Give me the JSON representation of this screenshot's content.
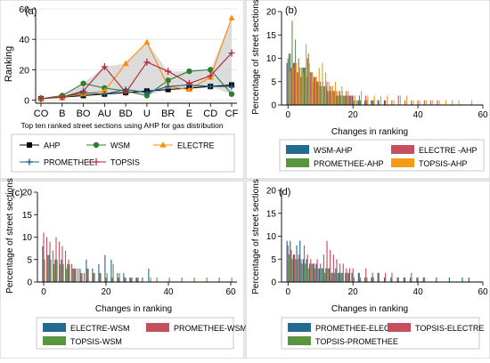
{
  "panel_a": {
    "label": "(a)",
    "ylabel": "Ranking",
    "xlabel": "Top ten ranked street sections using AHP for gas distribution",
    "legend": [
      "AHP",
      "WSM",
      "ELECTRE",
      "PROMETHEE",
      "TOPSIS"
    ]
  },
  "panel_b": {
    "label": "(b)",
    "ylabel": "Percentage of street sections",
    "xlabel": "Changes in ranking",
    "legend": [
      "WSM-AHP",
      "ELECTRE -AHP",
      "PROMETHEE-AHP",
      "TOPSIS-AHP"
    ]
  },
  "panel_c": {
    "label": "(c)",
    "ylabel": "Percentage of street sections",
    "xlabel": "Changes in ranking",
    "legend": [
      "ELECTRE-WSM",
      "PROMETHEE-WSM",
      "TOPSIS-WSM"
    ]
  },
  "panel_d": {
    "label": "(d)",
    "ylabel": "Percentage of street sections",
    "xlabel": "Changes in ranking",
    "legend": [
      "PROMETHEE-ELECTRE",
      "TOPSIS-ELECTRE",
      "TOPSIS-PROMETHEE"
    ]
  },
  "chart_data": [
    {
      "type": "line",
      "categories": [
        "CO",
        "B",
        "BO",
        "AU",
        "BD",
        "U",
        "BR",
        "E",
        "CD",
        "CF"
      ],
      "ylim": [
        -2,
        60
      ],
      "yticks": [
        0,
        20,
        40,
        60
      ],
      "grid": true,
      "legend_position": "bottom",
      "band_shaded": true,
      "series": [
        {
          "name": "AHP",
          "color": "#000000",
          "marker": "square",
          "values": [
            1,
            2,
            3,
            4,
            5,
            6,
            7,
            8,
            9,
            10
          ]
        },
        {
          "name": "WSM",
          "color": "#2e7d32",
          "marker": "circle",
          "values": [
            1,
            3,
            11,
            8,
            6,
            3,
            13,
            19,
            20,
            4
          ]
        },
        {
          "name": "ELECTRE",
          "color": "#ff8c00",
          "marker": "triangle",
          "values": [
            1,
            2,
            4,
            6,
            24,
            38,
            9,
            7,
            15,
            54
          ]
        },
        {
          "name": "PROMETHEE",
          "color": "#1f5f8b",
          "marker": "plus",
          "values": [
            1,
            2,
            5,
            4,
            7,
            5,
            9,
            10,
            9,
            9
          ]
        },
        {
          "name": "TOPSIS",
          "color": "#b22234",
          "marker": "cross",
          "values": [
            1,
            2,
            6,
            22,
            5,
            25,
            19,
            11,
            16,
            31
          ]
        }
      ]
    },
    {
      "type": "bar",
      "xlim": [
        -2,
        60
      ],
      "xticks": [
        0,
        20,
        40,
        60
      ],
      "ylim": [
        0,
        20
      ],
      "yticks": [
        0,
        5,
        10,
        15,
        20
      ],
      "series": [
        {
          "name": "WSM-AHP",
          "color": "#236a91",
          "x": [
            0,
            1,
            2,
            3,
            4,
            5,
            6,
            7,
            8,
            9,
            10,
            11,
            12,
            13,
            14,
            15,
            16,
            17,
            18,
            19,
            20,
            21,
            22,
            24,
            26,
            28,
            30
          ],
          "values": [
            9,
            11,
            9,
            7,
            8,
            8,
            6,
            7,
            5,
            6,
            4,
            5,
            4,
            3,
            4,
            2,
            2,
            3,
            2,
            2,
            2,
            1,
            1,
            1,
            1,
            1,
            1
          ]
        },
        {
          "name": "ELECTRE -AHP",
          "color": "#c4505d",
          "x": [
            0,
            1,
            2,
            3,
            4,
            5,
            6,
            7,
            8,
            9,
            10,
            11,
            12,
            13,
            14,
            15,
            16,
            17,
            18,
            19,
            20,
            22,
            24,
            26,
            28,
            30,
            32,
            34,
            36,
            38,
            40,
            42,
            44,
            46
          ],
          "values": [
            10,
            8,
            9,
            7,
            6,
            8,
            10,
            7,
            6,
            5,
            5,
            4,
            5,
            4,
            3,
            3,
            3,
            2,
            3,
            2,
            2,
            2,
            2,
            1,
            1,
            1,
            1,
            2,
            1,
            1,
            1,
            1,
            1,
            1
          ]
        },
        {
          "name": "PROMETHEE-AHP",
          "color": "#5a9640",
          "x": [
            0,
            1,
            2,
            3,
            4,
            5,
            6,
            7,
            8,
            9,
            10,
            11,
            12,
            13,
            14,
            15,
            16,
            17,
            18,
            19,
            20,
            21,
            22,
            24,
            26
          ],
          "values": [
            11,
            18,
            14,
            10,
            8,
            8,
            11,
            7,
            6,
            5,
            4,
            4,
            3,
            3,
            3,
            2,
            2,
            2,
            2,
            2,
            1,
            1,
            1,
            1,
            1
          ]
        },
        {
          "name": "TOPSIS-AHP",
          "color": "#f59b13",
          "x": [
            0,
            1,
            2,
            3,
            4,
            5,
            6,
            7,
            8,
            9,
            10,
            11,
            12,
            13,
            14,
            15,
            16,
            18,
            20,
            22,
            24,
            26,
            28,
            30,
            32,
            34,
            36,
            38,
            40,
            42,
            44,
            46,
            48,
            50,
            52,
            56
          ],
          "values": [
            7,
            8,
            9,
            8,
            7,
            13,
            9,
            7,
            6,
            8,
            9,
            7,
            5,
            4,
            5,
            3,
            4,
            3,
            2,
            3,
            2,
            2,
            2,
            2,
            1,
            2,
            2,
            1,
            1,
            1,
            1,
            1,
            1,
            1,
            1,
            1
          ]
        }
      ]
    },
    {
      "type": "bar",
      "xlim": [
        -2,
        62
      ],
      "xticks": [
        0,
        20,
        40,
        60
      ],
      "ylim": [
        0,
        20
      ],
      "yticks": [
        0,
        5,
        10,
        15,
        20
      ],
      "series": [
        {
          "name": "ELECTRE-WSM",
          "color": "#236a91",
          "x": [
            0,
            2,
            4,
            6,
            8,
            10,
            12,
            14,
            16,
            18,
            20,
            22,
            24,
            26,
            28,
            30,
            32,
            34
          ],
          "values": [
            8,
            6,
            5,
            5,
            4,
            3,
            3,
            5,
            3,
            4,
            6,
            5,
            2,
            2,
            1,
            1,
            1,
            3
          ]
        },
        {
          "name": "PROMETHEE-WSM",
          "color": "#c4505d",
          "x": [
            0,
            1,
            2,
            3,
            4,
            5,
            6,
            7,
            8,
            9,
            10,
            11,
            12,
            13,
            14,
            16,
            18,
            20,
            22,
            24,
            26,
            28,
            30
          ],
          "values": [
            11,
            10,
            9,
            7,
            10,
            9,
            8,
            7,
            5,
            4,
            3,
            3,
            2,
            2,
            3,
            2,
            2,
            1,
            1,
            1,
            1,
            1,
            1
          ]
        },
        {
          "name": "TOPSIS-WSM",
          "color": "#5a9640",
          "x": [
            0,
            1,
            2,
            3,
            4,
            5,
            6,
            7,
            8,
            9,
            10,
            12,
            14,
            16,
            18,
            20,
            22,
            24,
            26,
            28,
            30,
            34,
            36,
            40,
            44,
            48,
            52,
            56,
            60
          ],
          "values": [
            5,
            6,
            5,
            4,
            5,
            4,
            4,
            3,
            4,
            3,
            3,
            2,
            3,
            2,
            2,
            2,
            4,
            2,
            1,
            1,
            1,
            1,
            1,
            1,
            1,
            1,
            1,
            1,
            1
          ]
        }
      ]
    },
    {
      "type": "bar",
      "xlim": [
        -2,
        60
      ],
      "xticks": [
        0,
        20,
        40,
        60
      ],
      "ylim": [
        0,
        20
      ],
      "yticks": [
        0,
        5,
        10,
        15,
        20
      ],
      "series": [
        {
          "name": "PROMETHEE-ELECTRE",
          "color": "#236a91",
          "x": [
            0,
            1,
            2,
            3,
            4,
            5,
            6,
            7,
            8,
            9,
            10,
            11,
            12,
            13,
            14,
            15,
            16,
            17,
            18,
            19,
            20,
            22,
            24,
            26,
            28,
            30,
            32,
            34,
            36,
            38,
            40,
            42,
            46,
            50,
            54,
            56
          ],
          "values": [
            9,
            9,
            6,
            8,
            9,
            5,
            5,
            4,
            4,
            4,
            3,
            3,
            3,
            3,
            2,
            3,
            2,
            2,
            2,
            2,
            2,
            2,
            1,
            1,
            2,
            1,
            1,
            1,
            1,
            1,
            1,
            1,
            1,
            1,
            1,
            1
          ]
        },
        {
          "name": "TOPSIS-ELECTRE",
          "color": "#c4505d",
          "x": [
            0,
            1,
            2,
            3,
            4,
            5,
            6,
            7,
            8,
            9,
            10,
            11,
            12,
            13,
            14,
            15,
            16,
            17,
            18,
            19,
            20,
            22,
            24,
            26,
            28,
            30,
            32,
            34,
            36,
            38,
            40,
            42
          ],
          "values": [
            8,
            7,
            6,
            5,
            5,
            8,
            6,
            5,
            4,
            5,
            4,
            6,
            9,
            7,
            6,
            5,
            4,
            4,
            3,
            3,
            3,
            2,
            3,
            2,
            2,
            2,
            2,
            1,
            1,
            2,
            1,
            1
          ]
        },
        {
          "name": "TOPSIS-PROMETHEE",
          "color": "#5a9640",
          "x": [
            0,
            1,
            2,
            3,
            4,
            5,
            6,
            7,
            8,
            9,
            10,
            11,
            12,
            13,
            14,
            15,
            16,
            18,
            20,
            22,
            24,
            26
          ],
          "values": [
            6,
            5,
            5,
            6,
            4,
            4,
            3,
            4,
            3,
            3,
            3,
            2,
            3,
            2,
            2,
            2,
            2,
            2,
            1,
            1,
            1,
            1
          ]
        }
      ]
    }
  ]
}
